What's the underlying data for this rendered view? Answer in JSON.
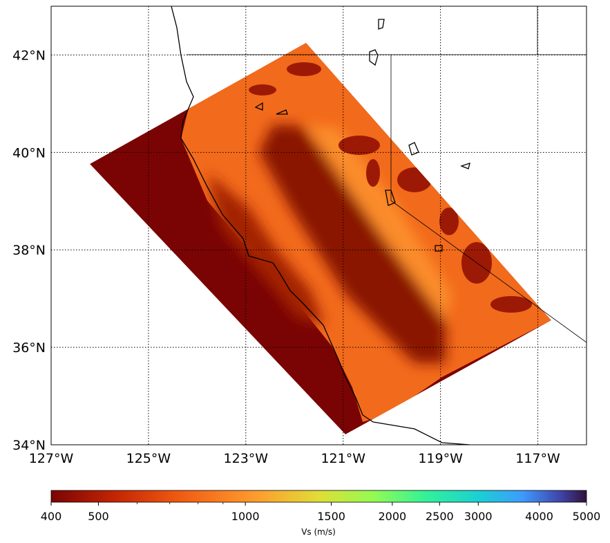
{
  "map": {
    "xlim": [
      -127,
      -116
    ],
    "ylim": [
      34,
      43
    ],
    "xticks": [
      {
        "value": -127,
        "label": "127°W"
      },
      {
        "value": -125,
        "label": "125°W"
      },
      {
        "value": -123,
        "label": "123°W"
      },
      {
        "value": -121,
        "label": "121°W"
      },
      {
        "value": -119,
        "label": "119°W"
      },
      {
        "value": -117,
        "label": "117°W"
      }
    ],
    "yticks": [
      {
        "value": 34,
        "label": "34°N"
      },
      {
        "value": 36,
        "label": "36°N"
      },
      {
        "value": 38,
        "label": "38°N"
      },
      {
        "value": 40,
        "label": "40°N"
      },
      {
        "value": 42,
        "label": "42°N"
      }
    ],
    "grid": true
  },
  "colorbar": {
    "label": "Vs (m/s)",
    "scale": "log",
    "lim": [
      400,
      5000
    ],
    "ticks": [
      400,
      500,
      1000,
      1500,
      2000,
      2500,
      3000,
      4000,
      5000
    ],
    "minor_ticks": [
      600,
      700,
      800,
      900
    ]
  }
}
